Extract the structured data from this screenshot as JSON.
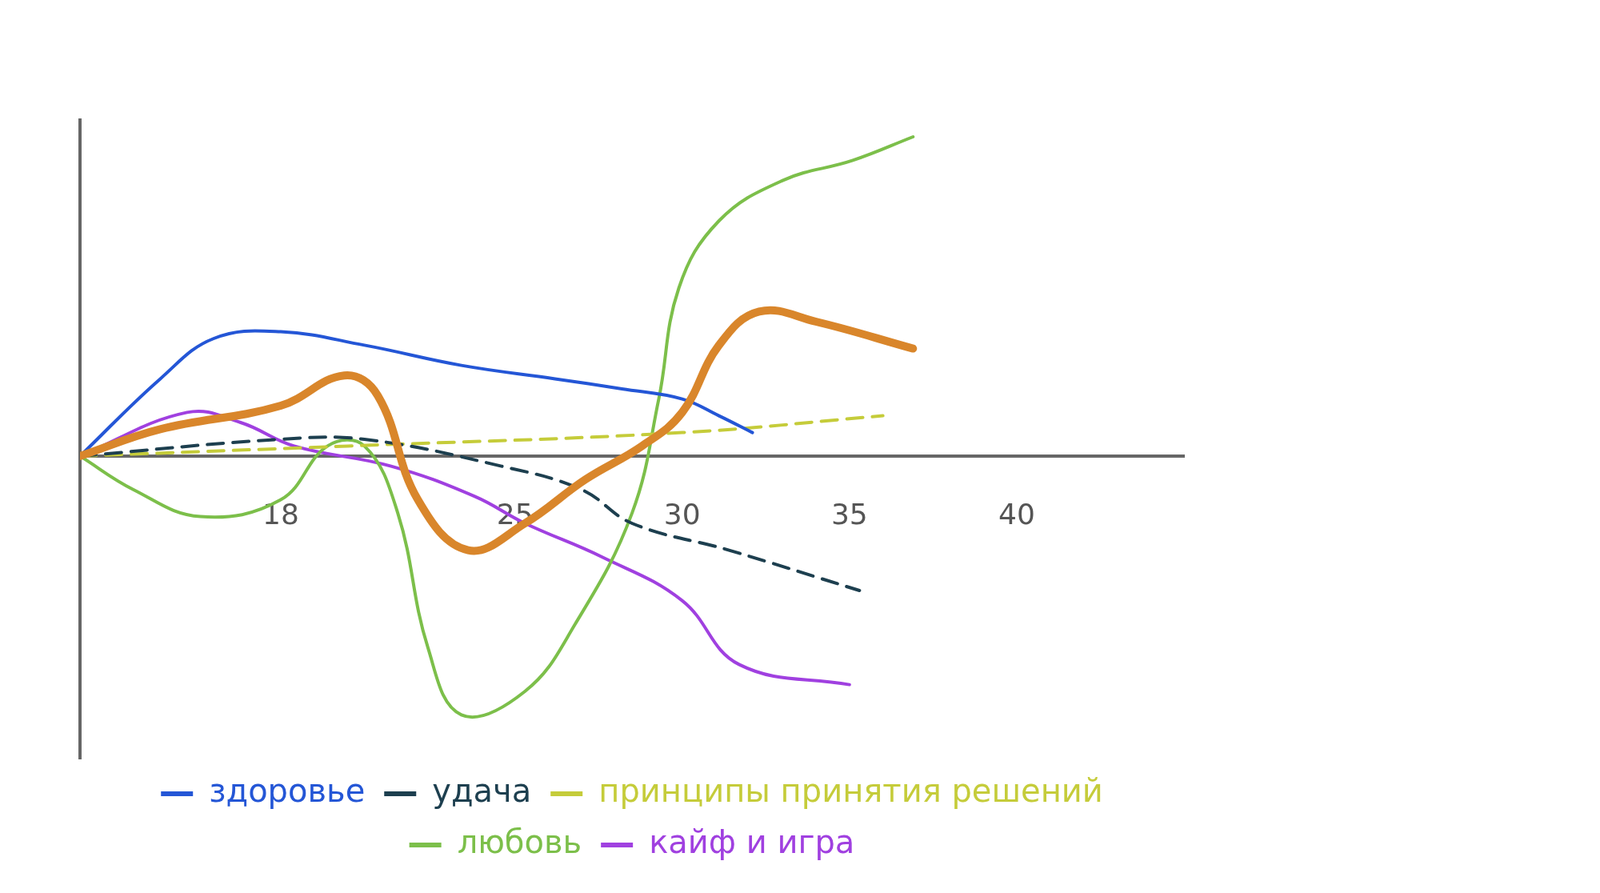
{
  "chart_data": {
    "type": "line",
    "xlim": [
      12,
      45
    ],
    "xticks": [
      18,
      25,
      30,
      35,
      40
    ],
    "ylim": [
      -9,
      10
    ],
    "grid": false,
    "legend": "bottom",
    "tick_labels": "x",
    "series": [
      {
        "name": "здоровье",
        "color": "#2456d6",
        "x": [
          12,
          14.4,
          16,
          18,
          20.5,
          23.4,
          26.2,
          28.2,
          30,
          31.1,
          32.1
        ],
        "values": [
          0,
          2.3,
          3.5,
          3.7,
          3.3,
          2.7,
          2.3,
          2.0,
          1.7,
          1.2,
          0.7
        ]
      },
      {
        "name": "удача",
        "color": "#1d3f4f",
        "line_style": "dashed",
        "x": [
          12,
          18,
          20.5,
          24.6,
          27,
          28.5,
          31.4,
          35.3
        ],
        "values": [
          0,
          0.5,
          0.5,
          -0.3,
          -1,
          -2,
          -2.8,
          -4
        ]
      },
      {
        "name": "принципы принятия решений",
        "color": "#c5cc3a",
        "line_style": "dashed",
        "x": [
          12,
          20,
          30,
          36
        ],
        "values": [
          0,
          0.3,
          0.7,
          1.2
        ]
      },
      {
        "name": "любовь",
        "color": "#7cbf4a",
        "x": [
          12,
          13.6,
          15.6,
          18,
          19.4,
          20.5,
          21.5,
          22.4,
          23.4,
          25.3,
          26.8,
          28.5,
          29.3,
          29.9,
          31.1,
          33,
          35.1,
          36.9
        ],
        "values": [
          0,
          -1,
          -1.8,
          -1.3,
          0.3,
          0.3,
          -1.7,
          -5.7,
          -7.7,
          -7,
          -5,
          -1.7,
          1.7,
          5,
          7,
          8.2,
          8.8,
          9.5
        ]
      },
      {
        "name": "кайф и игра",
        "color": "#a040e0",
        "x": [
          12,
          15.2,
          16.8,
          18.4,
          21.3,
          23.8,
          25.3,
          27.6,
          30,
          31.7,
          35
        ],
        "values": [
          0,
          1.3,
          1,
          0.3,
          -0.3,
          -1.2,
          -2,
          -3,
          -4.3,
          -6.2,
          -6.8
        ]
      },
      {
        "color": "#d9862b",
        "x": [
          12,
          14.4,
          18,
          19.9,
          20.9,
          22.1,
          23.6,
          25.3,
          27.1,
          28.8,
          30,
          31.1,
          32.3,
          34,
          36.9
        ],
        "values": [
          0,
          0.8,
          1.5,
          2.4,
          1.8,
          -1.3,
          -2.8,
          -2,
          -0.7,
          0.3,
          1.3,
          3.3,
          4.3,
          4,
          3.2
        ]
      }
    ]
  }
}
